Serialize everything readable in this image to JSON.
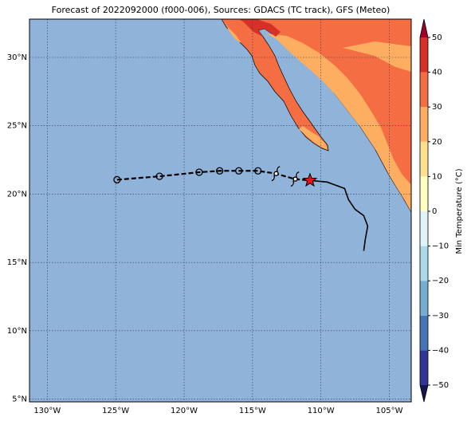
{
  "chart_data": {
    "type": "map",
    "title": "Forecast of 2022092000 (f000-006), Sources: GDACS (TC track), GFS (Meteo)",
    "xlim": [
      -131.3,
      -103.4
    ],
    "ylim": [
      4.8,
      32.8
    ],
    "xticks": [
      {
        "value": -130,
        "label": "130°W"
      },
      {
        "value": -125,
        "label": "125°W"
      },
      {
        "value": -120,
        "label": "120°W"
      },
      {
        "value": -115,
        "label": "115°W"
      },
      {
        "value": -110,
        "label": "110°W"
      },
      {
        "value": -105,
        "label": "105°W"
      }
    ],
    "yticks": [
      {
        "value": 5,
        "label": "5°N"
      },
      {
        "value": 10,
        "label": "10°N"
      },
      {
        "value": 15,
        "label": "15°N"
      },
      {
        "value": 20,
        "label": "20°N"
      },
      {
        "value": 25,
        "label": "25°N"
      },
      {
        "value": 30,
        "label": "30°N"
      }
    ],
    "grid": true,
    "track": {
      "lon": [
        -124.9,
        -121.8,
        -118.9,
        -117.4,
        -116.0,
        -114.6,
        -113.3,
        -111.9,
        -110.8
      ],
      "lat": [
        21.05,
        21.3,
        21.6,
        21.7,
        21.7,
        21.7,
        21.5,
        21.1,
        21.0
      ],
      "markers": [
        "circle",
        "circle",
        "circle",
        "circle",
        "circle",
        "circle",
        "cyclone",
        "cyclone",
        "star"
      ]
    },
    "path": {
      "lon": [
        -110.8,
        -109.55,
        -108.27,
        -107.98,
        -107.51,
        -106.87,
        -106.58,
        -106.76,
        -106.87
      ],
      "lat": [
        21.0,
        20.88,
        20.41,
        19.59,
        18.89,
        18.42,
        17.66,
        16.67,
        15.85
      ]
    },
    "colorbar": {
      "label": "Min Temperature (°C)",
      "ticks": [
        {
          "value": -50,
          "label": "−50"
        },
        {
          "value": -40,
          "label": "−40"
        },
        {
          "value": -30,
          "label": "−30"
        },
        {
          "value": -20,
          "label": "−20"
        },
        {
          "value": -10,
          "label": "−10"
        },
        0,
        10,
        20,
        30,
        40,
        50
      ],
      "colors": [
        "#313695",
        "#4575b4",
        "#74add1",
        "#abd9e9",
        "#e0f3f8",
        "#ffffbf",
        "#fee090",
        "#fdae61",
        "#f46d43",
        "#d73027"
      ],
      "under_color": "#16164f",
      "over_color": "#a50026"
    }
  }
}
